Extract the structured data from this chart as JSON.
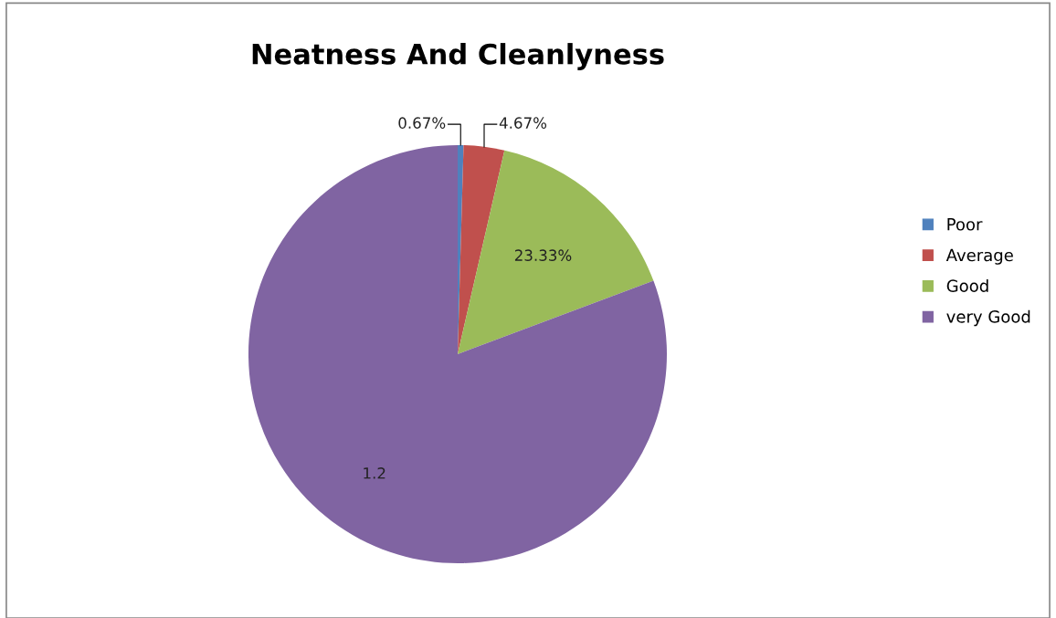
{
  "chart_data": {
    "type": "pie",
    "title": "Neatness And Cleanlyness",
    "categories": [
      "Poor",
      "Average",
      "Good",
      "very Good"
    ],
    "values": [
      0.0067,
      0.0467,
      0.2333,
      1.2
    ],
    "value_labels": [
      "0.67%",
      "4.67%",
      "23.33%",
      "1.2"
    ],
    "colors": [
      "#4f81bd",
      "#c0504d",
      "#9bbb59",
      "#8064a2"
    ],
    "legend": "right"
  }
}
